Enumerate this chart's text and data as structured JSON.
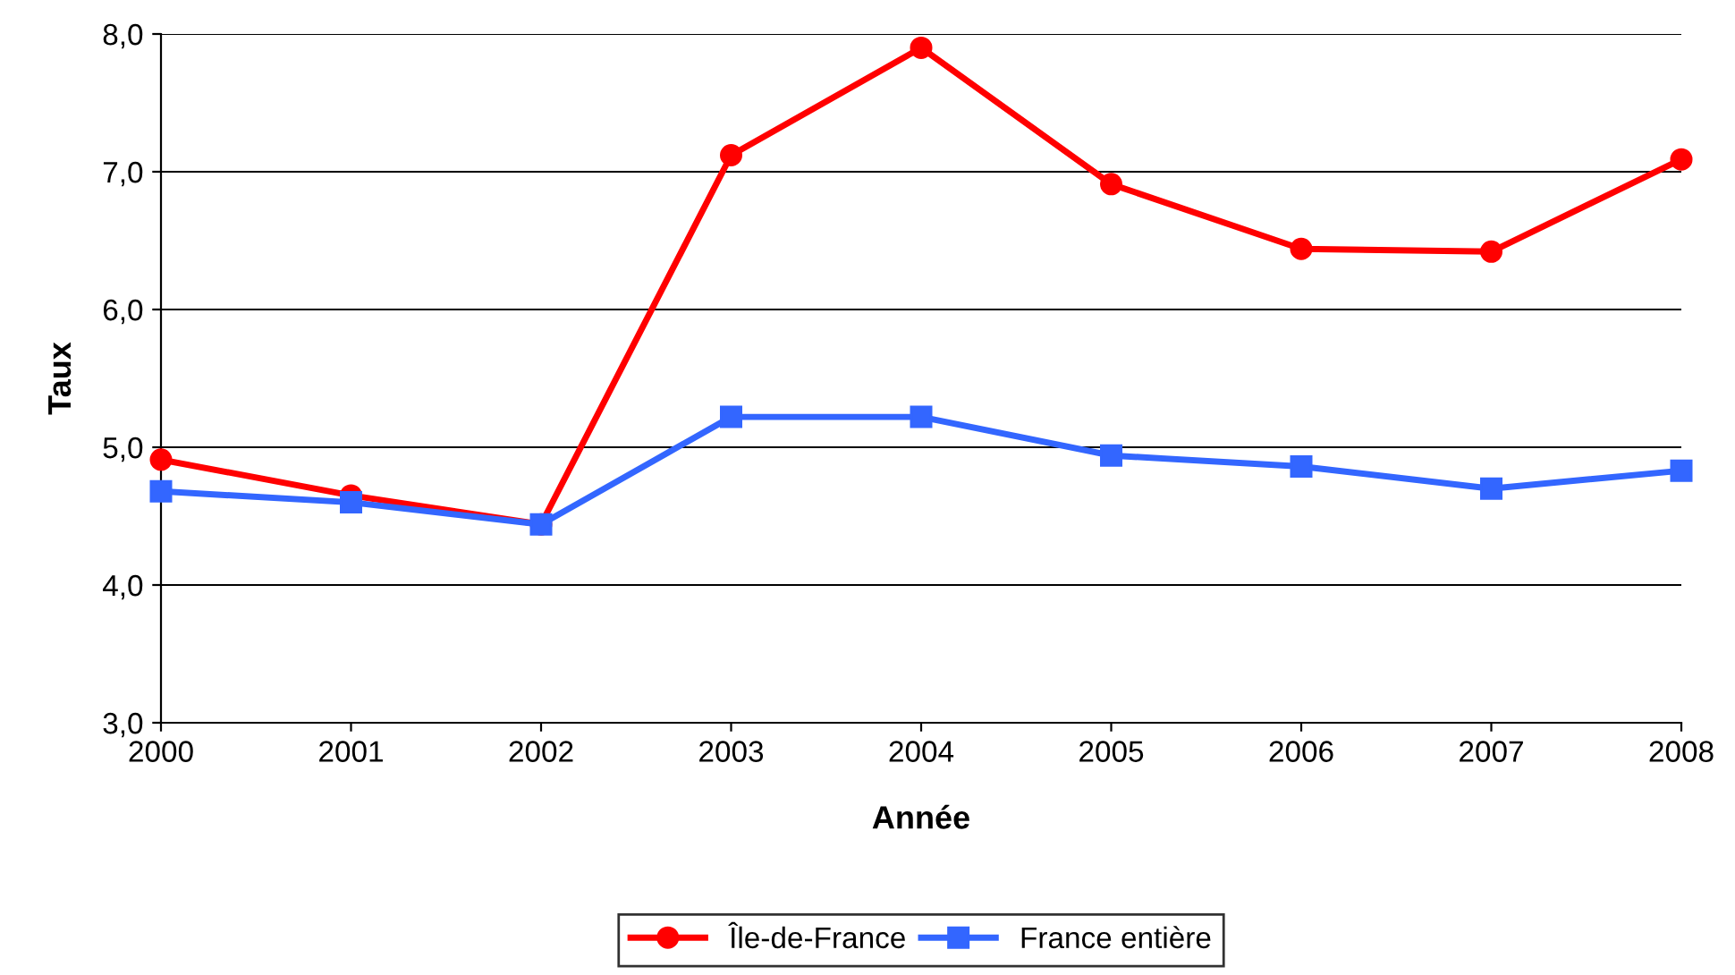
{
  "chart_data": {
    "type": "line",
    "xlabel": "Année",
    "ylabel": "Taux",
    "x": [
      2000,
      2001,
      2002,
      2003,
      2004,
      2005,
      2006,
      2007,
      2008
    ],
    "series": [
      {
        "name": "Île-de-France",
        "color": "#ff0000",
        "marker": "circle",
        "values": [
          4.91,
          4.65,
          4.44,
          7.12,
          7.9,
          6.91,
          6.44,
          6.42,
          7.09
        ]
      },
      {
        "name": "France entière",
        "color": "#3366ff",
        "marker": "square",
        "values": [
          4.68,
          4.6,
          4.44,
          5.22,
          5.22,
          4.94,
          4.86,
          4.7,
          4.83
        ]
      }
    ],
    "xlim": [
      2000,
      2008
    ],
    "xticks": [
      2000,
      2001,
      2002,
      2003,
      2004,
      2005,
      2006,
      2007,
      2008
    ],
    "ylim": [
      3,
      8
    ],
    "yticks": [
      {
        "value": 3,
        "label": "3,0"
      },
      {
        "value": 4,
        "label": "4,0"
      },
      {
        "value": 5,
        "label": "5,0"
      },
      {
        "value": 6,
        "label": "6,0"
      },
      {
        "value": 7,
        "label": "7,0"
      },
      {
        "value": 8,
        "label": "8,0"
      }
    ],
    "grid": "y",
    "legend": "bottom",
    "line_style": "solid"
  }
}
